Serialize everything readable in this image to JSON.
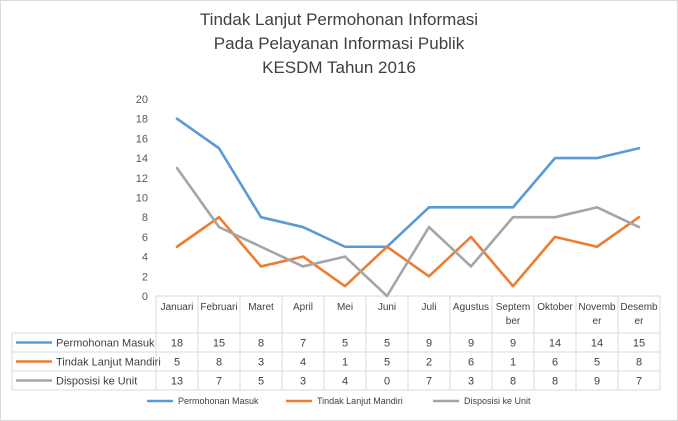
{
  "chart_data": {
    "type": "line",
    "title_lines": [
      "Tindak Lanjut Permohonan Informasi",
      "Pada Pelayanan Informasi Publik",
      "KESDM Tahun 2016"
    ],
    "categories": [
      "Januari",
      "Februari",
      "Maret",
      "April",
      "Mei",
      "Juni",
      "Juli",
      "Agustus",
      "September",
      "Oktober",
      "November",
      "Desember"
    ],
    "category_labels": [
      [
        "Januari"
      ],
      [
        "Februari"
      ],
      [
        "Maret"
      ],
      [
        "April"
      ],
      [
        "Mei"
      ],
      [
        "Juni"
      ],
      [
        "Juli"
      ],
      [
        "Agustus"
      ],
      [
        "Septem",
        "ber"
      ],
      [
        "Oktober"
      ],
      [
        "Novemb",
        "er"
      ],
      [
        "Desemb",
        "er"
      ]
    ],
    "ylim": [
      0,
      20
    ],
    "yticks": [
      0,
      2,
      4,
      6,
      8,
      10,
      12,
      14,
      16,
      18,
      20
    ],
    "grid": false,
    "legend_position": "bottom",
    "data_table": true,
    "series": [
      {
        "name": "Permohonan Masuk",
        "color": "#5b9bd5",
        "values": [
          18,
          15,
          8,
          7,
          5,
          5,
          9,
          9,
          9,
          14,
          14,
          15
        ]
      },
      {
        "name": "Tindak Lanjut Mandiri",
        "color": "#ed7d31",
        "values": [
          5,
          8,
          3,
          4,
          1,
          5,
          2,
          6,
          1,
          6,
          5,
          8
        ]
      },
      {
        "name": "Disposisi ke Unit",
        "color": "#a5a5a5",
        "values": [
          13,
          7,
          5,
          3,
          4,
          0,
          7,
          3,
          8,
          8,
          9,
          7
        ]
      }
    ]
  }
}
